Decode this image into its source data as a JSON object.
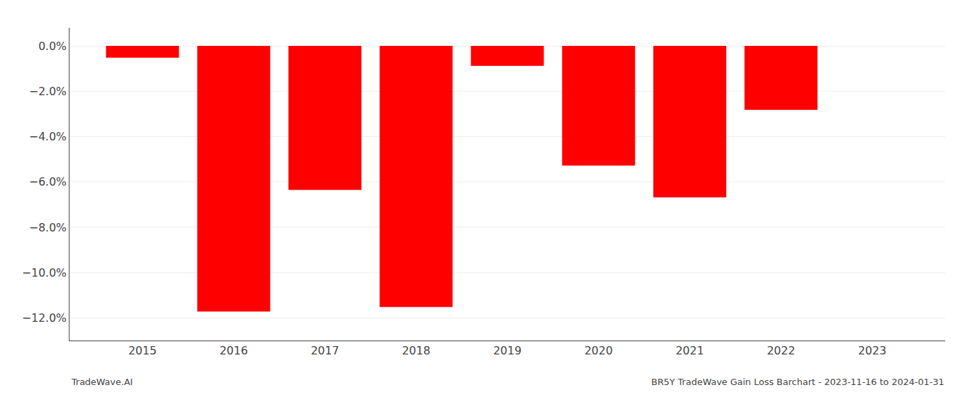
{
  "chart_data": {
    "type": "bar",
    "x": [
      2015,
      2016,
      2017,
      2018,
      2019,
      2020,
      2021,
      2022,
      2023
    ],
    "values": [
      -0.52,
      -11.72,
      -6.35,
      -11.52,
      -0.88,
      -5.28,
      -6.68,
      -2.82,
      null
    ],
    "color": "#ff0000",
    "xlim": [
      2014.2,
      2023.8
    ],
    "xticks": [
      2015,
      2016,
      2017,
      2018,
      2019,
      2020,
      2021,
      2022,
      2023
    ],
    "ylim": [
      -13.0,
      0.8
    ],
    "yticks": [
      {
        "value": 0.0,
        "label": "0.0%"
      },
      {
        "value": -2.0,
        "label": "−2.0%"
      },
      {
        "value": -4.0,
        "label": "−4.0%"
      },
      {
        "value": -6.0,
        "label": "−6.0%"
      },
      {
        "value": -8.0,
        "label": "−8.0%"
      },
      {
        "value": -10.0,
        "label": "−10.0%"
      },
      {
        "value": -12.0,
        "label": "−12.0%"
      }
    ],
    "grid": true,
    "annotations": [
      {
        "text": "TradeWave.AI"
      },
      {
        "text": "BR5Y TradeWave Gain Loss Barchart - 2023-11-16 to 2024-01-31"
      }
    ]
  }
}
